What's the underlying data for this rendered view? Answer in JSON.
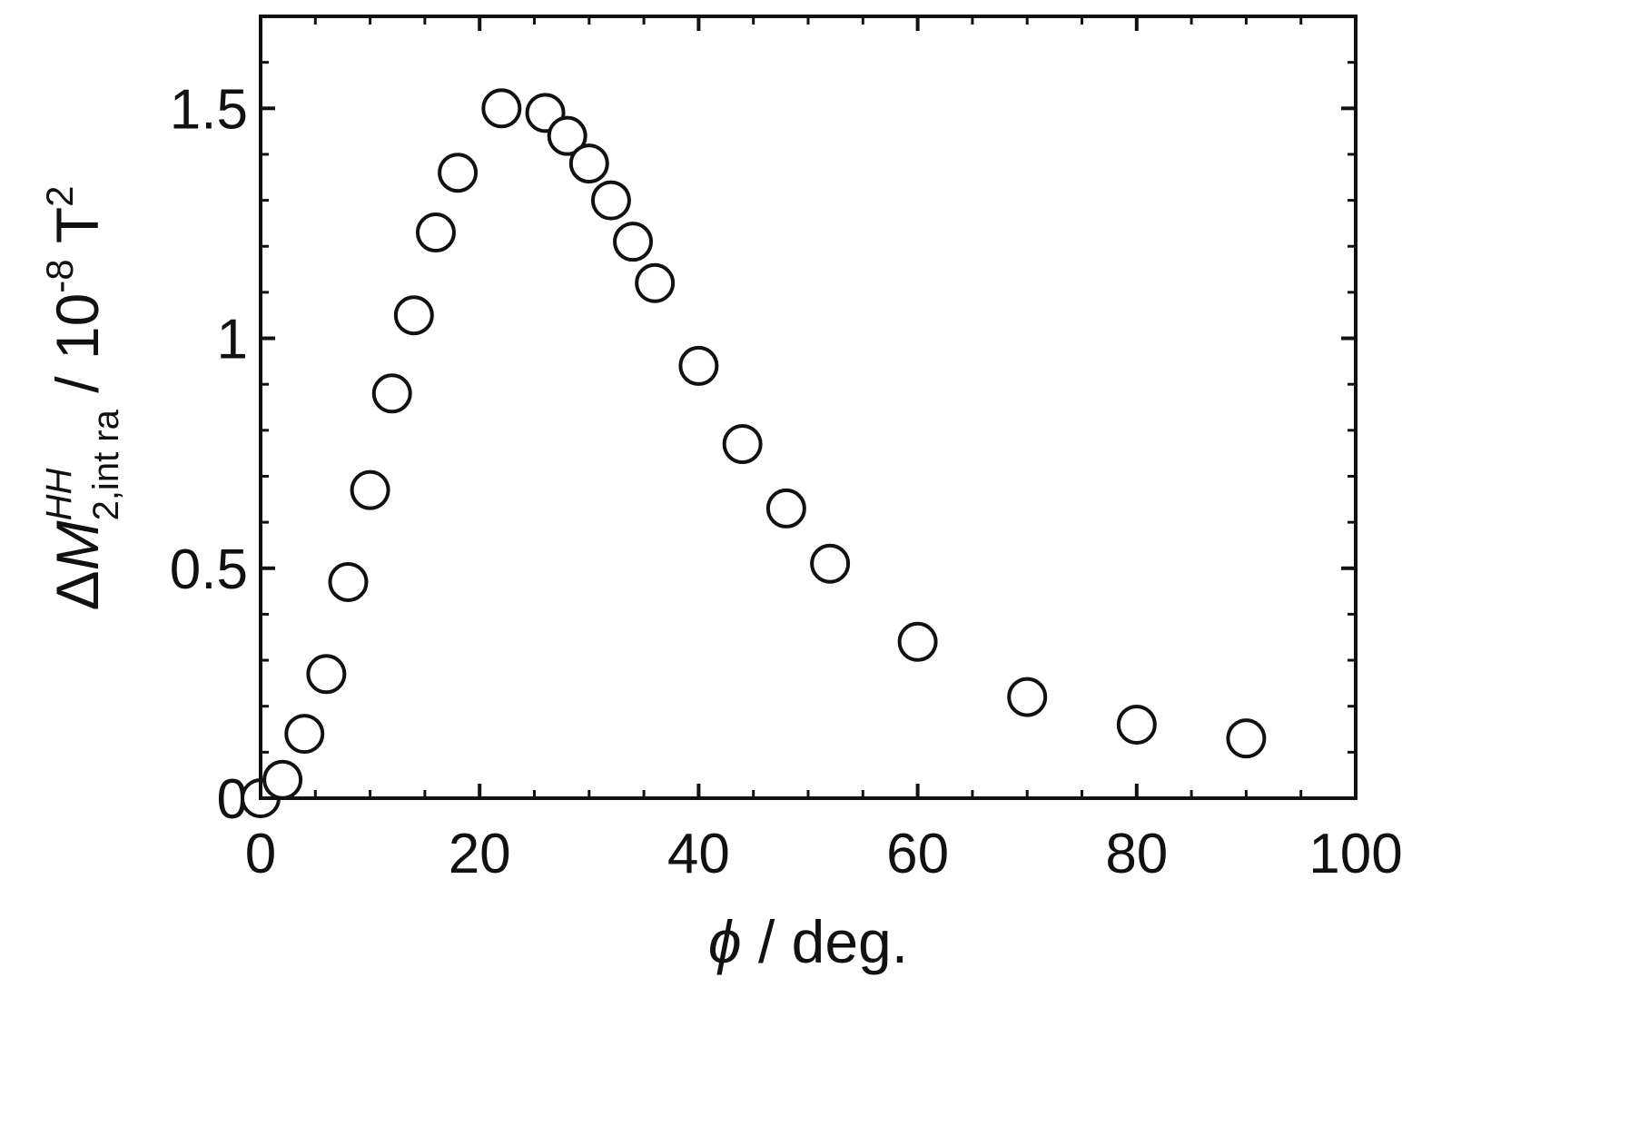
{
  "chart_data": {
    "type": "scatter",
    "xlabel": {
      "symbol": "ϕ",
      "rest": " / deg."
    },
    "ylabel": {
      "delta": "Δ",
      "symbol": "M",
      "superscript": "HH",
      "subscript": "2,int ra",
      "unit_prefix": " / 10",
      "exponent": "-8",
      "unit": " T",
      "unit_exponent": "2"
    },
    "xlim": [
      0,
      100
    ],
    "ylim": [
      0,
      1.7
    ],
    "xticks": [
      0,
      20,
      40,
      60,
      80,
      100
    ],
    "xtick_labels": [
      "0",
      "20",
      "40",
      "60",
      "80",
      "100"
    ],
    "yticks": [
      0,
      0.5,
      1,
      1.5
    ],
    "ytick_labels": [
      "0",
      "0.5",
      "1",
      "1.5"
    ],
    "x_minor_step": 5,
    "y_minor_step": 0.1,
    "grid": false,
    "marker": "open-circle",
    "series": [
      {
        "x": [
          0,
          2,
          4,
          6,
          8,
          10,
          12,
          14,
          16,
          18,
          22,
          26,
          28,
          30,
          32,
          34,
          36,
          40,
          44,
          48,
          52,
          60,
          70,
          80,
          90
        ],
        "y": [
          0.0,
          0.04,
          0.14,
          0.27,
          0.47,
          0.67,
          0.88,
          1.05,
          1.23,
          1.36,
          1.5,
          1.49,
          1.44,
          1.38,
          1.3,
          1.21,
          1.12,
          0.94,
          0.77,
          0.63,
          0.51,
          0.34,
          0.22,
          0.16,
          0.13
        ]
      }
    ],
    "colors": {
      "axis": "#111111",
      "marker_stroke": "#111111",
      "marker_fill": "#ffffff"
    }
  }
}
